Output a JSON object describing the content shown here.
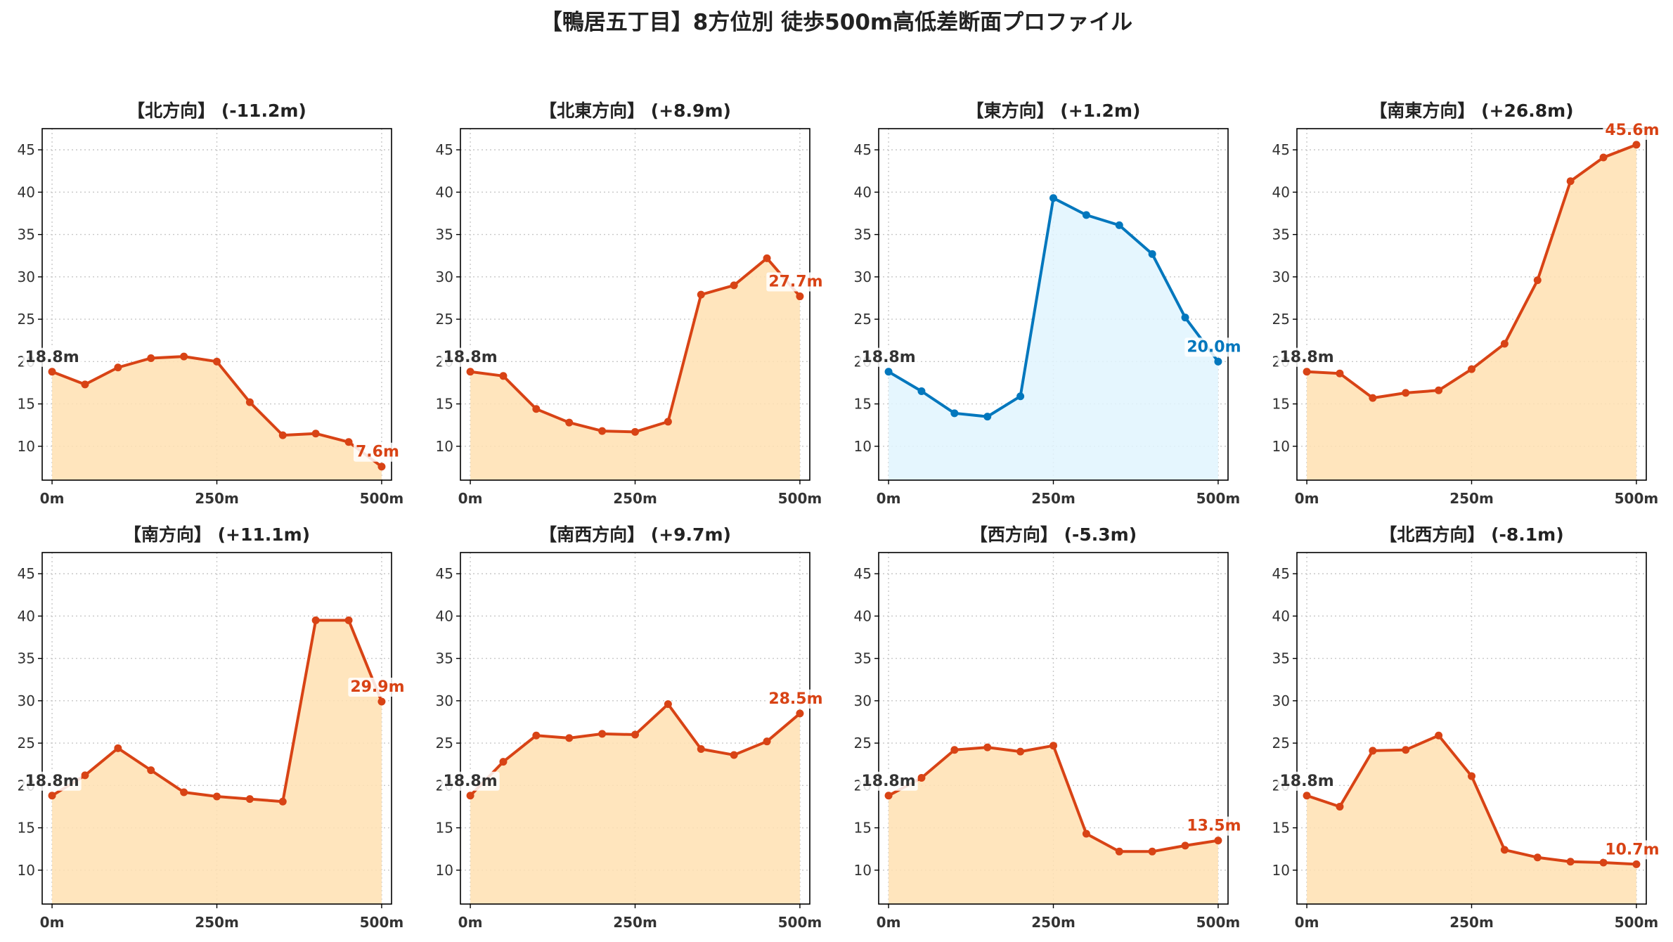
{
  "suptitle": "【鴨居五丁目】8方位別 徒歩500m高低差断面プロファイル",
  "colors": {
    "up_line": "#D84315",
    "up_fill": "#FFE0B2",
    "down_line": "#0277BD",
    "down_fill": "#E1F5FE",
    "start_label": "#333333"
  },
  "chart_data": [
    {
      "type": "area",
      "title": "【北方向】 (-11.2m)",
      "x": [
        0,
        50,
        100,
        150,
        200,
        250,
        300,
        350,
        400,
        450,
        500
      ],
      "y": [
        18.8,
        17.3,
        19.3,
        20.4,
        20.6,
        20.0,
        15.2,
        11.3,
        11.5,
        10.5,
        7.6
      ],
      "start_label": "18.8m",
      "end_label": "7.6m",
      "style": "up",
      "xticks": [
        0,
        250,
        500
      ],
      "xticklabels": [
        "0m",
        "250m",
        "500m"
      ],
      "yticks": [
        10,
        15,
        20,
        25,
        30,
        35,
        40,
        45
      ],
      "xlim": [
        -15,
        515
      ],
      "ylim": [
        6,
        47.5
      ],
      "grid": true
    },
    {
      "type": "area",
      "title": "【北東方向】 (+8.9m)",
      "x": [
        0,
        50,
        100,
        150,
        200,
        250,
        300,
        350,
        400,
        450,
        500
      ],
      "y": [
        18.8,
        18.3,
        14.4,
        12.8,
        11.8,
        11.7,
        12.9,
        27.9,
        29.0,
        32.2,
        27.7
      ],
      "start_label": "18.8m",
      "end_label": "27.7m",
      "style": "up",
      "xticks": [
        0,
        250,
        500
      ],
      "xticklabels": [
        "0m",
        "250m",
        "500m"
      ],
      "yticks": [
        10,
        15,
        20,
        25,
        30,
        35,
        40,
        45
      ],
      "xlim": [
        -15,
        515
      ],
      "ylim": [
        6,
        47.5
      ],
      "grid": true
    },
    {
      "type": "area",
      "title": "【東方向】 (+1.2m)",
      "x": [
        0,
        50,
        100,
        150,
        200,
        250,
        300,
        350,
        400,
        450,
        500
      ],
      "y": [
        18.8,
        16.5,
        13.9,
        13.5,
        15.9,
        39.3,
        37.3,
        36.1,
        32.7,
        25.2,
        20.0
      ],
      "start_label": "18.8m",
      "end_label": "20.0m",
      "style": "down",
      "xticks": [
        0,
        250,
        500
      ],
      "xticklabels": [
        "0m",
        "250m",
        "500m"
      ],
      "yticks": [
        10,
        15,
        20,
        25,
        30,
        35,
        40,
        45
      ],
      "xlim": [
        -15,
        515
      ],
      "ylim": [
        6,
        47.5
      ],
      "grid": true
    },
    {
      "type": "area",
      "title": "【南東方向】 (+26.8m)",
      "x": [
        0,
        50,
        100,
        150,
        200,
        250,
        300,
        350,
        400,
        450,
        500
      ],
      "y": [
        18.8,
        18.6,
        15.7,
        16.3,
        16.6,
        19.1,
        22.1,
        29.6,
        41.3,
        44.1,
        45.6
      ],
      "start_label": "18.8m",
      "end_label": "45.6m",
      "style": "up",
      "xticks": [
        0,
        250,
        500
      ],
      "xticklabels": [
        "0m",
        "250m",
        "500m"
      ],
      "yticks": [
        10,
        15,
        20,
        25,
        30,
        35,
        40,
        45
      ],
      "xlim": [
        -15,
        515
      ],
      "ylim": [
        6,
        47.5
      ],
      "grid": true
    },
    {
      "type": "area",
      "title": "【南方向】 (+11.1m)",
      "x": [
        0,
        50,
        100,
        150,
        200,
        250,
        300,
        350,
        400,
        450,
        500
      ],
      "y": [
        18.8,
        21.2,
        24.4,
        21.8,
        19.2,
        18.7,
        18.4,
        18.1,
        39.5,
        39.5,
        29.9
      ],
      "start_label": "18.8m",
      "end_label": "29.9m",
      "style": "up",
      "xticks": [
        0,
        250,
        500
      ],
      "xticklabels": [
        "0m",
        "250m",
        "500m"
      ],
      "yticks": [
        10,
        15,
        20,
        25,
        30,
        35,
        40,
        45
      ],
      "xlim": [
        -15,
        515
      ],
      "ylim": [
        6,
        47.5
      ],
      "grid": true
    },
    {
      "type": "area",
      "title": "【南西方向】 (+9.7m)",
      "x": [
        0,
        50,
        100,
        150,
        200,
        250,
        300,
        350,
        400,
        450,
        500
      ],
      "y": [
        18.8,
        22.8,
        25.9,
        25.6,
        26.1,
        26.0,
        29.6,
        24.3,
        23.6,
        25.2,
        28.5
      ],
      "start_label": "18.8m",
      "end_label": "28.5m",
      "style": "up",
      "xticks": [
        0,
        250,
        500
      ],
      "xticklabels": [
        "0m",
        "250m",
        "500m"
      ],
      "yticks": [
        10,
        15,
        20,
        25,
        30,
        35,
        40,
        45
      ],
      "xlim": [
        -15,
        515
      ],
      "ylim": [
        6,
        47.5
      ],
      "grid": true
    },
    {
      "type": "area",
      "title": "【西方向】 (-5.3m)",
      "x": [
        0,
        50,
        100,
        150,
        200,
        250,
        300,
        350,
        400,
        450,
        500
      ],
      "y": [
        18.8,
        20.9,
        24.2,
        24.5,
        24.0,
        24.7,
        14.3,
        12.2,
        12.2,
        12.9,
        13.5
      ],
      "start_label": "18.8m",
      "end_label": "13.5m",
      "style": "up",
      "xticks": [
        0,
        250,
        500
      ],
      "xticklabels": [
        "0m",
        "250m",
        "500m"
      ],
      "yticks": [
        10,
        15,
        20,
        25,
        30,
        35,
        40,
        45
      ],
      "xlim": [
        -15,
        515
      ],
      "ylim": [
        6,
        47.5
      ],
      "grid": true
    },
    {
      "type": "area",
      "title": "【北西方向】 (-8.1m)",
      "x": [
        0,
        50,
        100,
        150,
        200,
        250,
        300,
        350,
        400,
        450,
        500
      ],
      "y": [
        18.8,
        17.5,
        24.1,
        24.2,
        25.9,
        21.1,
        12.4,
        11.5,
        11.0,
        10.9,
        10.7
      ],
      "start_label": "18.8m",
      "end_label": "10.7m",
      "style": "up",
      "xticks": [
        0,
        250,
        500
      ],
      "xticklabels": [
        "0m",
        "250m",
        "500m"
      ],
      "yticks": [
        10,
        15,
        20,
        25,
        30,
        35,
        40,
        45
      ],
      "xlim": [
        -15,
        515
      ],
      "ylim": [
        6,
        47.5
      ],
      "grid": true
    }
  ]
}
